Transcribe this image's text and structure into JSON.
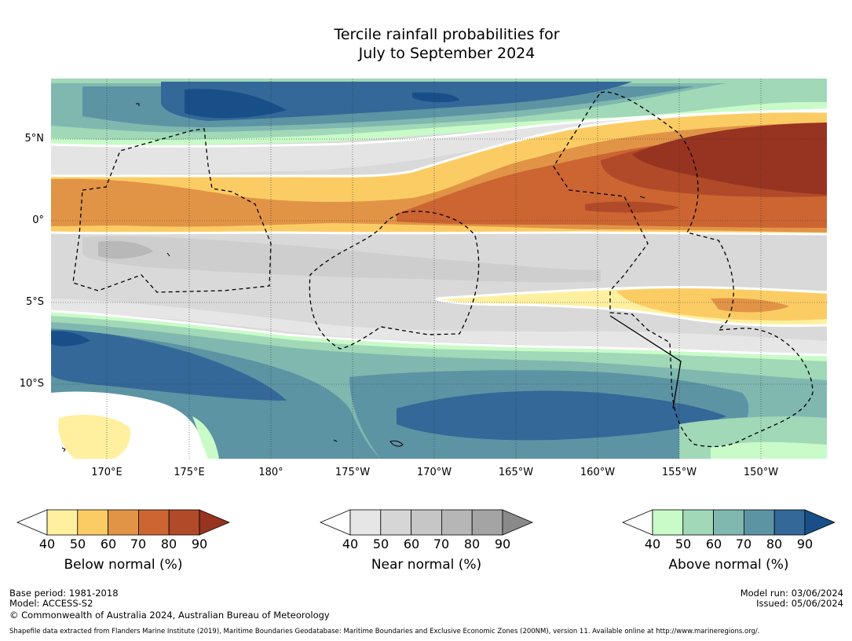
{
  "title": {
    "line1": "Tercile rainfall probabilities for",
    "line2": "July to September 2024"
  },
  "map": {
    "lat_labels": [
      "5°N",
      "0°",
      "5°S",
      "10°S"
    ],
    "lon_labels": [
      "170°E",
      "175°E",
      "180°",
      "175°W",
      "170°W",
      "165°W",
      "160°W",
      "155°W",
      "150°W"
    ]
  },
  "legends": {
    "below": {
      "label": "Below normal (%)",
      "ticks": [
        "40",
        "50",
        "60",
        "70",
        "80",
        "90"
      ],
      "colors": [
        "#fff0a0",
        "#fccc64",
        "#e19446",
        "#cc6532",
        "#b04a28",
        "#973321"
      ]
    },
    "near": {
      "label": "Near normal (%)",
      "ticks": [
        "40",
        "50",
        "60",
        "70",
        "80",
        "90"
      ],
      "colors": [
        "#e6e6e6",
        "#d6d6d6",
        "#c6c6c6",
        "#b6b6b6",
        "#a4a4a4",
        "#8a8a8a"
      ]
    },
    "above": {
      "label": "Above normal (%)",
      "ticks": [
        "40",
        "50",
        "60",
        "70",
        "80",
        "90"
      ],
      "colors": [
        "#c8fbc8",
        "#a0d8b8",
        "#80b8b0",
        "#5c94a4",
        "#336898",
        "#184f88"
      ]
    }
  },
  "footer": {
    "base_period": "Base period: 1981-2018",
    "model": "Model: ACCESS-S2",
    "copyright": "© Commonwealth of Australia 2024, Australian Bureau of Meteorology",
    "model_run": "Model run: 03/06/2024",
    "issued": "Issued: 05/06/2024",
    "shapefile": "Shapefile data extracted from Flanders Marine Institute (2019), Maritime Boundaries Geodatabase: Maritime Boundaries and Exclusive Economic Zones (200NM), version 11. Available online at http://www.marineregions.org/."
  }
}
